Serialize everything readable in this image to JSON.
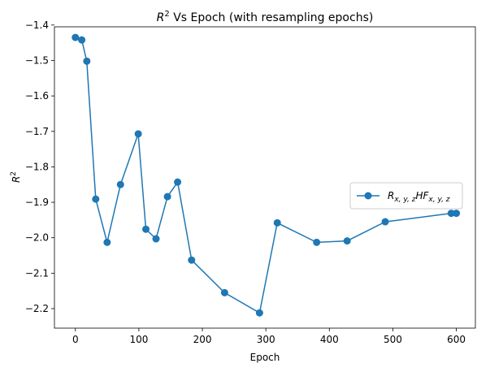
{
  "chart_data": {
    "type": "line",
    "title_main": "R",
    "title_sup": "2",
    "title_rest": " Vs Epoch (with resampling epochs)",
    "xlabel": "Epoch",
    "ylabel_main": "R",
    "ylabel_sup": "2",
    "xlim": [
      -33,
      630
    ],
    "ylim": [
      -2.255,
      -1.405
    ],
    "xticks": [
      0,
      100,
      200,
      300,
      400,
      500,
      600
    ],
    "yticks": [
      -1.4,
      -1.5,
      -1.6,
      -1.7,
      -1.8,
      -1.9,
      -2.0,
      -2.1,
      -2.2
    ],
    "ytick_labels": [
      "−1.4",
      "−1.5",
      "−1.6",
      "−1.7",
      "−1.8",
      "−1.9",
      "−2.0",
      "−2.1",
      "−2.2"
    ],
    "legend_position": "center-right",
    "grid": false,
    "color": "#1f77b4",
    "series": [
      {
        "legend_parts": [
          "R",
          "x, y, z",
          "HF",
          "x, y, z"
        ],
        "x": [
          0,
          10,
          18,
          32,
          50,
          71,
          99,
          111,
          127,
          145,
          161,
          183,
          235,
          290,
          318,
          380,
          428,
          488,
          592,
          600
        ],
        "y": [
          -1.435,
          -1.442,
          -1.502,
          -1.891,
          -2.013,
          -1.85,
          -1.707,
          -1.976,
          -2.003,
          -1.884,
          -1.843,
          -2.063,
          -2.155,
          -2.212,
          -1.958,
          -2.013,
          -2.009,
          -1.955,
          -1.931,
          -1.931
        ]
      }
    ]
  }
}
